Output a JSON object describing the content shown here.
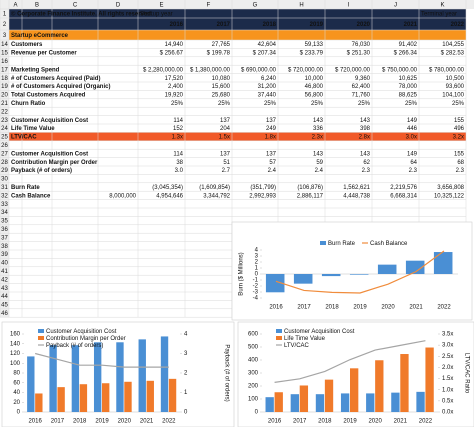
{
  "table": {
    "columns": [
      "A",
      "B",
      "C",
      "D",
      "E",
      "F",
      "G",
      "H",
      "I",
      "J",
      "K"
    ],
    "rows": [
      {
        "row": "1",
        "fill": "#1c2b4a",
        "color": "#ffffff",
        "cells": {
          "A": "© Corporate Finance Institute. All rights reserved.",
          "E": "Startup year",
          "K": "Terminal year"
        }
      },
      {
        "row": "2",
        "fill": "#1c2b4a",
        "color": "#ffffff",
        "bold": true,
        "size": 9,
        "cells": {
          "E": "2016",
          "F": "2017",
          "G": "2018",
          "H": "2019",
          "I": "2020",
          "J": "2021",
          "K": "2022"
        }
      },
      {
        "row": "3",
        "fill": "#f7941d",
        "color": "#ffffff",
        "bold": true,
        "size": 8,
        "cells": {
          "A": "Startup eCommerce"
        }
      },
      {
        "row": "14",
        "value_color": "#1f3fbf",
        "cells": {
          "A": "Customers",
          "E": "14,940",
          "F": "27,765",
          "G": "42,604",
          "H": "59,133",
          "I": "76,030",
          "J": "91,402",
          "K": "104,255"
        }
      },
      {
        "row": "15",
        "cells": {
          "A": "Revenue per Customer",
          "E": "$ 256.67",
          "F": "$ 199.78",
          "G": "$ 207.34",
          "H": "$ 233.79",
          "I": "$ 251.30",
          "J": "$ 266.34",
          "K": "$ 282.53"
        }
      },
      {
        "row": "16"
      },
      {
        "row": "17",
        "value_color": "#1f3fbf",
        "cells": {
          "A": "Marketing Spend",
          "E": "$ 2,280,000.00",
          "F": "$ 1,380,000.00",
          "G": "$ 690,000.00",
          "H": "$ 720,000.00",
          "I": "$ 720,000.00",
          "J": "$ 750,000.00",
          "K": "$ 780,000.00"
        }
      },
      {
        "row": "18",
        "value_color": "#1f3fbf",
        "cells": {
          "A": "# of Customers Acquired (Paid)",
          "E": "17,520",
          "F": "10,080",
          "G": "6,240",
          "H": "10,000",
          "I": "9,360",
          "J": "10,625",
          "K": "10,500"
        }
      },
      {
        "row": "19",
        "value_color": "#1f3fbf",
        "cells": {
          "A": "# of Customers Acquired (Organic)",
          "E": "2,400",
          "F": "15,600",
          "G": "31,200",
          "H": "46,800",
          "I": "62,400",
          "J": "78,000",
          "K": "93,600"
        }
      },
      {
        "row": "20",
        "cells": {
          "A": "Total Customers Acquired",
          "E": "19,920",
          "F": "25,680",
          "G": "37,440",
          "H": "56,800",
          "I": "71,760",
          "J": "88,625",
          "K": "104,100"
        }
      },
      {
        "row": "21",
        "value_color": "#1f3fbf",
        "cells": {
          "A": "Churn Ratio",
          "E": "25%",
          "F": "25%",
          "G": "25%",
          "H": "25%",
          "I": "25%",
          "J": "25%",
          "K": "25%"
        }
      },
      {
        "row": "22"
      },
      {
        "row": "23",
        "cells": {
          "A": "Customer Acquisition Cost",
          "E": "114",
          "F": "137",
          "G": "137",
          "H": "143",
          "I": "143",
          "J": "149",
          "K": "155"
        }
      },
      {
        "row": "24",
        "cells": {
          "A": "Life Time Value",
          "E": "152",
          "F": "204",
          "G": "249",
          "H": "336",
          "I": "398",
          "J": "446",
          "K": "496"
        }
      },
      {
        "row": "25",
        "fill": "#f15a29",
        "color": "#1a1a1a",
        "cells": {
          "A": "LTV/CAC",
          "E": "1.3x",
          "F": "1.5x",
          "G": "1.8x",
          "H": "2.3x",
          "I": "2.8x",
          "J": "3.0x",
          "K": "3.2x"
        }
      },
      {
        "row": "26"
      },
      {
        "row": "27",
        "cells": {
          "A": "Customer Acquisition Cost",
          "E": "114",
          "F": "137",
          "G": "137",
          "H": "143",
          "I": "143",
          "J": "149",
          "K": "155"
        }
      },
      {
        "row": "28",
        "cells": {
          "A": "Contribution Margin per Order",
          "E": "38",
          "F": "51",
          "G": "57",
          "H": "59",
          "I": "62",
          "J": "64",
          "K": "68"
        }
      },
      {
        "row": "29",
        "cells": {
          "A": "Payback (# of orders)",
          "E": "3.0",
          "F": "2.7",
          "G": "2.4",
          "H": "2.4",
          "I": "2.3",
          "J": "2.3",
          "K": "2.3"
        }
      },
      {
        "row": "30"
      },
      {
        "row": "31",
        "value_color": "#1f3fbf",
        "cells": {
          "A": "Burn Rate",
          "E": "(3,045,354)",
          "F": "(1,609,854)",
          "G": "(351,799)",
          "H": "(106,876)",
          "I": "1,562,621",
          "J": "2,219,576",
          "K": "3,656,808"
        }
      },
      {
        "row": "32",
        "value_color": "#1f3fbf",
        "cells": {
          "A": "Cash Balance",
          "D": "8,000,000",
          "E": "4,954,646",
          "F": "3,344,792",
          "G": "2,992,993",
          "H": "2,886,117",
          "I": "4,448,738",
          "J": "6,668,314",
          "K": "10,325,122"
        }
      }
    ],
    "extra_rows": [
      "33",
      "34",
      "35",
      "36",
      "37",
      "38",
      "39",
      "40",
      "41",
      "42",
      "43",
      "44",
      "45",
      "46"
    ]
  },
  "chart_data": [
    {
      "type": "combo",
      "ylabel": "Burn ($ Millions)",
      "legend": "top",
      "categories": [
        "2016",
        "2017",
        "2018",
        "2019",
        "2020",
        "2021",
        "2022"
      ],
      "series": [
        {
          "name": "Burn Rate",
          "type": "bar",
          "color": "#4a8fd4",
          "values": [
            -3.05,
            -1.61,
            -0.35,
            -0.11,
            1.56,
            2.22,
            3.66
          ]
        },
        {
          "name": "Cash Balance",
          "type": "line",
          "axis": "y2",
          "color": "#f08c3c",
          "values": [
            4.95,
            3.34,
            2.99,
            2.89,
            4.45,
            6.67,
            10.33
          ]
        }
      ],
      "ylim": [
        -4,
        4
      ],
      "yticks": [
        -4,
        -3,
        -2,
        -1,
        0,
        1,
        2,
        3,
        4
      ],
      "y2lim": [
        2,
        10.5
      ]
    },
    {
      "type": "combo",
      "y2label": "Payback (# of orders)",
      "legend": "upper left",
      "categories": [
        "2016",
        "2017",
        "2018",
        "2019",
        "2020",
        "2021",
        "2022"
      ],
      "series": [
        {
          "name": "Customer Acquisition Cost",
          "type": "bar",
          "color": "#4a8fd4",
          "values": [
            114,
            137,
            137,
            143,
            143,
            149,
            155
          ]
        },
        {
          "name": "Contribution Margin per Order",
          "type": "bar",
          "color": "#f07a2a",
          "values": [
            38,
            51,
            57,
            59,
            62,
            64,
            68
          ]
        },
        {
          "name": "Payback (# of orders)",
          "type": "line",
          "axis": "y2",
          "color": "#a5a5a5",
          "values": [
            3.0,
            2.7,
            2.4,
            2.4,
            2.3,
            2.3,
            2.3
          ]
        }
      ],
      "ylim": [
        0,
        160
      ],
      "yticks": [
        0,
        20,
        40,
        60,
        80,
        100,
        120,
        140,
        160
      ],
      "y2lim": [
        0,
        4
      ],
      "y2ticks": [
        0,
        1,
        2,
        3,
        4
      ]
    },
    {
      "type": "combo",
      "y2label": "LTV/CAC Ratio",
      "legend": "upper left",
      "categories": [
        "2016",
        "2017",
        "2018",
        "2019",
        "2020",
        "2021",
        "2022"
      ],
      "series": [
        {
          "name": "Customer Acquisition Cost",
          "type": "bar",
          "color": "#4a8fd4",
          "values": [
            114,
            137,
            137,
            143,
            143,
            149,
            155
          ]
        },
        {
          "name": "Life Time Value",
          "type": "bar",
          "color": "#f07a2a",
          "values": [
            152,
            204,
            249,
            336,
            398,
            446,
            496
          ]
        },
        {
          "name": "LTV/CAC",
          "type": "line",
          "axis": "y2",
          "color": "#a5a5a5",
          "values": [
            1.33,
            1.49,
            1.82,
            2.35,
            2.78,
            2.99,
            3.2
          ]
        }
      ],
      "ylim": [
        0,
        600
      ],
      "yticks": [
        0,
        100,
        200,
        300,
        400,
        500,
        600
      ],
      "y2lim": [
        0,
        3.5
      ],
      "y2ticks": [
        {
          "value": 0,
          "label": "0.0x"
        },
        {
          "value": 0.5,
          "label": "0.5x"
        },
        {
          "value": 1,
          "label": "1.0x"
        },
        {
          "value": 1.5,
          "label": "1.5x"
        },
        {
          "value": 2,
          "label": "2.0x"
        },
        {
          "value": 2.5,
          "label": "2.5x"
        },
        {
          "value": 3,
          "label": "3.0x"
        },
        {
          "value": 3.5,
          "label": "3.5x"
        }
      ]
    }
  ]
}
